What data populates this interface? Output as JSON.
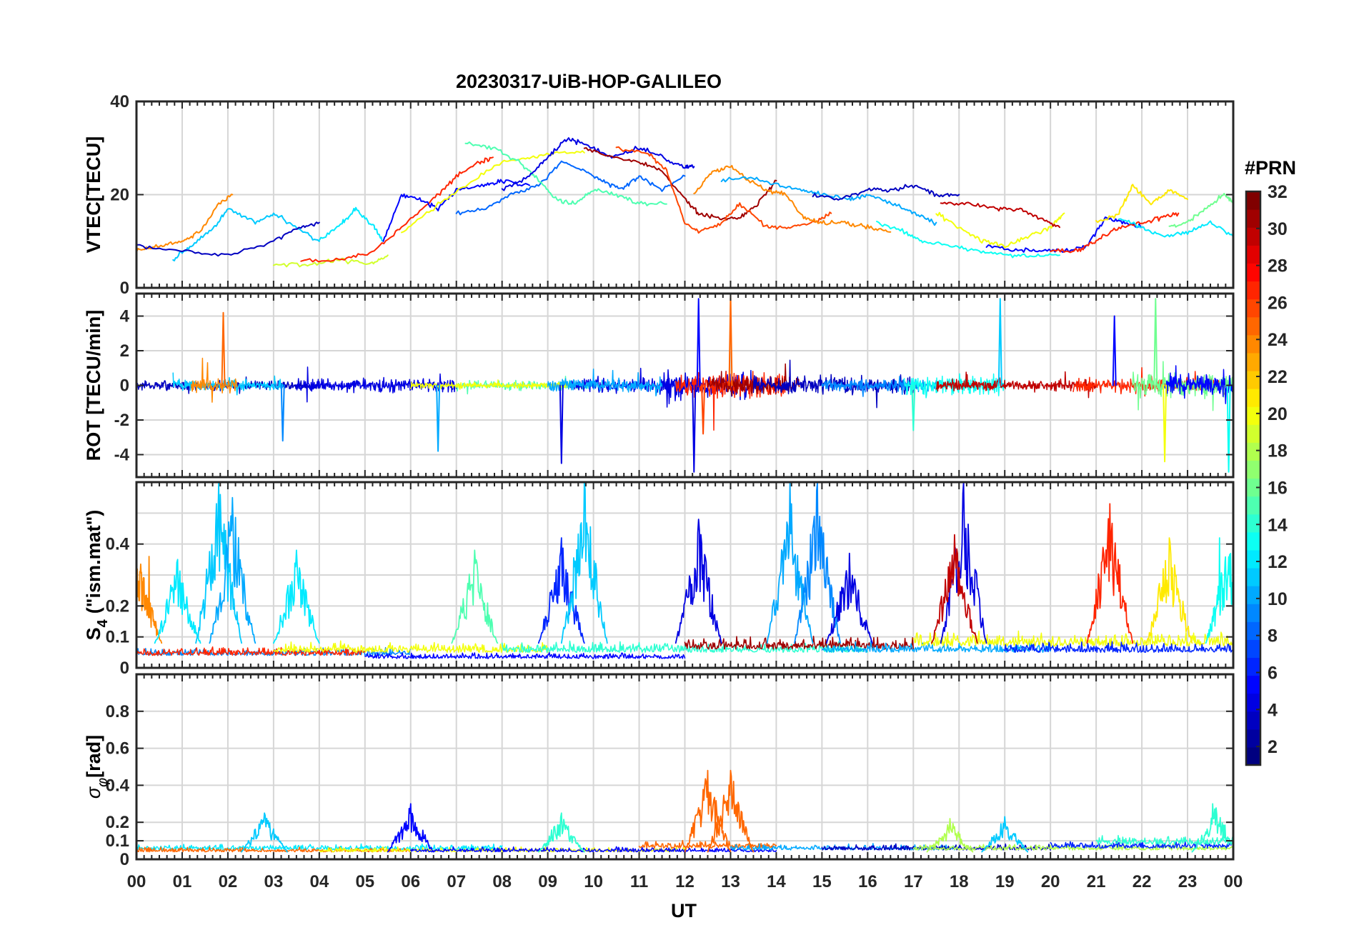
{
  "chart_data": {
    "type": "line",
    "title": "20230317-UiB-HOP-GALILEO",
    "xlabel": "UT",
    "x_range_hours": [
      0,
      24
    ],
    "x_tick_labels": [
      "00",
      "01",
      "02",
      "03",
      "04",
      "05",
      "06",
      "07",
      "08",
      "09",
      "10",
      "11",
      "12",
      "13",
      "14",
      "15",
      "16",
      "17",
      "18",
      "19",
      "20",
      "21",
      "22",
      "23",
      "00"
    ],
    "colorbar": {
      "label": "#PRN",
      "range": [
        1,
        32
      ],
      "ticks": [
        2,
        4,
        6,
        8,
        10,
        12,
        14,
        16,
        18,
        20,
        22,
        24,
        26,
        28,
        30,
        32
      ],
      "colormap": "jet"
    },
    "panels": [
      {
        "id": "vtec",
        "ylabel": "VTEC[TECU]",
        "ylim": [
          0,
          40
        ],
        "yticks": [
          0,
          20,
          40
        ],
        "series": [
          {
            "prn": 24,
            "x": [
              0,
              0.5,
              1.0,
              1.4,
              1.8,
              2.1
            ],
            "y": [
              8,
              9,
              10,
              12,
              18,
              20
            ]
          },
          {
            "prn": 11,
            "x": [
              0.8,
              1.2,
              1.7,
              2.0,
              2.6,
              3.0,
              3.5,
              4.0
            ],
            "y": [
              6,
              9,
              13,
              17,
              14,
              16,
              13,
              10
            ]
          },
          {
            "prn": 3,
            "x": [
              0,
              1.0,
              2.0,
              3.0,
              3.6,
              4.0
            ],
            "y": [
              9,
              8,
              7,
              10,
              13,
              14
            ]
          },
          {
            "prn": 19,
            "x": [
              3.0,
              3.8,
              4.5,
              5.1,
              5.5
            ],
            "y": [
              5,
              5,
              6,
              5,
              7
            ]
          },
          {
            "prn": 27,
            "x": [
              3.6,
              4.5,
              5.2,
              5.8,
              6.5,
              7.0,
              7.5,
              7.8
            ],
            "y": [
              6,
              6,
              8,
              13,
              19,
              24,
              27,
              28
            ]
          },
          {
            "prn": 12,
            "x": [
              4.0,
              4.5,
              4.8,
              5.2,
              5.4
            ],
            "y": [
              10,
              14,
              17,
              13,
              10
            ]
          },
          {
            "prn": 5,
            "x": [
              5.4,
              5.8,
              6.2,
              6.6,
              7.0,
              7.6,
              8.0,
              8.6
            ],
            "y": [
              10,
              20,
              19,
              17,
              21,
              22,
              23,
              22
            ]
          },
          {
            "prn": 20,
            "x": [
              5.8,
              6.5,
              7.2,
              8.0,
              8.6,
              9.2,
              9.8
            ],
            "y": [
              12,
              17,
              22,
              27,
              28,
              29,
              29
            ]
          },
          {
            "prn": 8,
            "x": [
              7.0,
              7.6,
              8.2,
              8.8,
              9.3,
              9.8,
              10.2,
              10.6,
              11.0,
              11.5,
              12.0
            ],
            "y": [
              16,
              17,
              20,
              22,
              27,
              25,
              23,
              21,
              24,
              21,
              24
            ]
          },
          {
            "prn": 15,
            "x": [
              7.2,
              7.8,
              8.4,
              8.8,
              9.2,
              9.6,
              10.0,
              10.5,
              11.0,
              11.6
            ],
            "y": [
              31,
              30,
              27,
              23,
              19,
              18,
              21,
              20,
              18,
              18
            ]
          },
          {
            "prn": 4,
            "x": [
              8.0,
              8.6,
              9.0,
              9.4,
              9.8,
              10.4,
              11.0,
              11.5,
              12.0,
              12.2
            ],
            "y": [
              21,
              24,
              28,
              32,
              31,
              28,
              30,
              28,
              26,
              26
            ]
          },
          {
            "prn": 31,
            "x": [
              9.8,
              10.4,
              11.0,
              11.5,
              12.0,
              12.3,
              12.8,
              13.2,
              13.6,
              14.0
            ],
            "y": [
              30,
              28,
              27,
              25,
              19,
              16,
              15,
              15,
              18,
              23
            ]
          },
          {
            "prn": 26,
            "x": [
              10.5,
              11.2,
              11.6,
              12.0,
              12.3,
              12.8,
              13.2,
              13.8,
              14.3,
              14.8,
              15.2
            ],
            "y": [
              30,
              29,
              25,
              14,
              12,
              14,
              18,
              13,
              13,
              14,
              16
            ]
          },
          {
            "prn": 24,
            "x": [
              12.2,
              12.6,
              13.0,
              13.4,
              13.8,
              14.2,
              14.6,
              15.0,
              15.5,
              16.0,
              16.5
            ],
            "y": [
              20,
              25,
              26,
              23,
              21,
              20,
              15,
              14,
              14,
              13,
              12
            ]
          },
          {
            "prn": 10,
            "x": [
              12.8,
              13.4,
              14.0,
              14.6,
              15.0,
              15.6,
              16.0,
              16.6,
              17.0,
              17.5
            ],
            "y": [
              23,
              24,
              22,
              21,
              20,
              19,
              20,
              18,
              16,
              14
            ]
          },
          {
            "prn": 3,
            "x": [
              14.8,
              15.4,
              16.0,
              16.5,
              17.0,
              17.5,
              18.0
            ],
            "y": [
              20,
              19,
              21,
              21,
              22,
              20,
              20
            ]
          },
          {
            "prn": 13,
            "x": [
              16.2,
              16.8,
              17.2,
              17.8,
              18.4,
              19.0,
              19.6,
              20.2
            ],
            "y": [
              14,
              12,
              10,
              9,
              8,
              7,
              7,
              7
            ]
          },
          {
            "prn": 20,
            "x": [
              17.5,
              18.0,
              18.5,
              19.0,
              19.5,
              20.0,
              20.3
            ],
            "y": [
              16,
              13,
              10,
              9,
              11,
              13,
              16
            ]
          },
          {
            "prn": 30,
            "x": [
              17.6,
              18.2,
              18.8,
              19.3,
              19.8,
              20.2
            ],
            "y": [
              18,
              18,
              17,
              17,
              15,
              13
            ]
          },
          {
            "prn": 5,
            "x": [
              18.6,
              19.2,
              19.8,
              20.4,
              20.8,
              21.2,
              21.6,
              22.0
            ],
            "y": [
              9,
              8,
              8,
              8,
              9,
              15,
              14,
              13
            ]
          },
          {
            "prn": 27,
            "x": [
              20.0,
              20.6,
              21.0,
              21.5,
              22.0,
              22.4,
              22.8
            ],
            "y": [
              8,
              8,
              10,
              13,
              14,
              15,
              16
            ]
          },
          {
            "prn": 21,
            "x": [
              21.0,
              21.5,
              21.8,
              22.2,
              22.6,
              23.0
            ],
            "y": [
              14,
              16,
              22,
              18,
              21,
              19
            ]
          },
          {
            "prn": 12,
            "x": [
              21.5,
              22.0,
              22.5,
              23.0,
              23.5,
              24.0
            ],
            "y": [
              15,
              13,
              11,
              12,
              14,
              11
            ]
          },
          {
            "prn": 16,
            "x": [
              22.6,
              23.0,
              23.4,
              23.8,
              24.0
            ],
            "y": [
              13,
              14,
              17,
              20,
              18
            ]
          }
        ]
      },
      {
        "id": "rot",
        "ylabel": "ROT [TECU/min]",
        "ylim": [
          -5.3,
          5.3
        ],
        "yticks": [
          -4,
          -2,
          0,
          2,
          4
        ],
        "spikes": [
          {
            "prn": 25,
            "x": 1.9,
            "y": 4.2
          },
          {
            "prn": 9,
            "x": 3.2,
            "y": -3.2
          },
          {
            "prn": 10,
            "x": 6.6,
            "y": -3.8
          },
          {
            "prn": 4,
            "x": 9.3,
            "y": -4.5
          },
          {
            "prn": 5,
            "x": 12.3,
            "y": 5.0
          },
          {
            "prn": 4,
            "x": 12.2,
            "y": -5.0
          },
          {
            "prn": 25,
            "x": 13.0,
            "y": 5.2
          },
          {
            "prn": 26,
            "x": 12.4,
            "y": -2.8
          },
          {
            "prn": 14,
            "x": 17.0,
            "y": -2.6
          },
          {
            "prn": 11,
            "x": 18.9,
            "y": 5.0
          },
          {
            "prn": 5,
            "x": 21.4,
            "y": 4.0
          },
          {
            "prn": 20,
            "x": 22.5,
            "y": -4.4
          },
          {
            "prn": 16,
            "x": 22.3,
            "y": 5.0
          },
          {
            "prn": 13,
            "x": 23.9,
            "y": -5.0
          }
        ]
      },
      {
        "id": "s4",
        "ylabel": "S4 (\"ism.mat\")",
        "ylim": [
          0,
          0.6
        ],
        "yticks": [
          0,
          0.1,
          0.2,
          0.4
        ],
        "yticklabels": [
          "0",
          "0.1",
          "0.2",
          "0.4"
        ],
        "peaks": [
          {
            "prn": 24,
            "x": 0.05,
            "y": 0.36
          },
          {
            "prn": 12,
            "x": 0.9,
            "y": 0.35
          },
          {
            "prn": 11,
            "x": 1.8,
            "y": 0.6
          },
          {
            "prn": 10,
            "x": 2.1,
            "y": 0.55
          },
          {
            "prn": 12,
            "x": 3.5,
            "y": 0.38
          },
          {
            "prn": 15,
            "x": 7.4,
            "y": 0.38
          },
          {
            "prn": 6,
            "x": 9.3,
            "y": 0.42
          },
          {
            "prn": 11,
            "x": 9.8,
            "y": 0.6
          },
          {
            "prn": 4,
            "x": 12.3,
            "y": 0.48
          },
          {
            "prn": 10,
            "x": 14.3,
            "y": 0.6
          },
          {
            "prn": 9,
            "x": 14.9,
            "y": 0.6
          },
          {
            "prn": 4,
            "x": 15.6,
            "y": 0.37
          },
          {
            "prn": 4,
            "x": 18.1,
            "y": 0.6
          },
          {
            "prn": 30,
            "x": 17.9,
            "y": 0.43
          },
          {
            "prn": 27,
            "x": 21.3,
            "y": 0.53
          },
          {
            "prn": 21,
            "x": 22.6,
            "y": 0.42
          },
          {
            "prn": 13,
            "x": 23.9,
            "y": 0.42
          }
        ]
      },
      {
        "id": "sigma_phi",
        "ylabel": "σφ[rad]",
        "ylim": [
          0,
          1.0
        ],
        "yticks": [
          0,
          0.1,
          0.2,
          0.4,
          0.6,
          0.8
        ],
        "peaks": [
          {
            "prn": 11,
            "x": 2.8,
            "y": 0.25
          },
          {
            "prn": 5,
            "x": 6.0,
            "y": 0.3
          },
          {
            "prn": 14,
            "x": 9.3,
            "y": 0.25
          },
          {
            "prn": 25,
            "x": 12.5,
            "y": 0.48
          },
          {
            "prn": 25,
            "x": 13.0,
            "y": 0.48
          },
          {
            "prn": 18,
            "x": 17.8,
            "y": 0.22
          },
          {
            "prn": 11,
            "x": 19.0,
            "y": 0.23
          },
          {
            "prn": 14,
            "x": 23.6,
            "y": 0.3
          }
        ]
      }
    ]
  }
}
